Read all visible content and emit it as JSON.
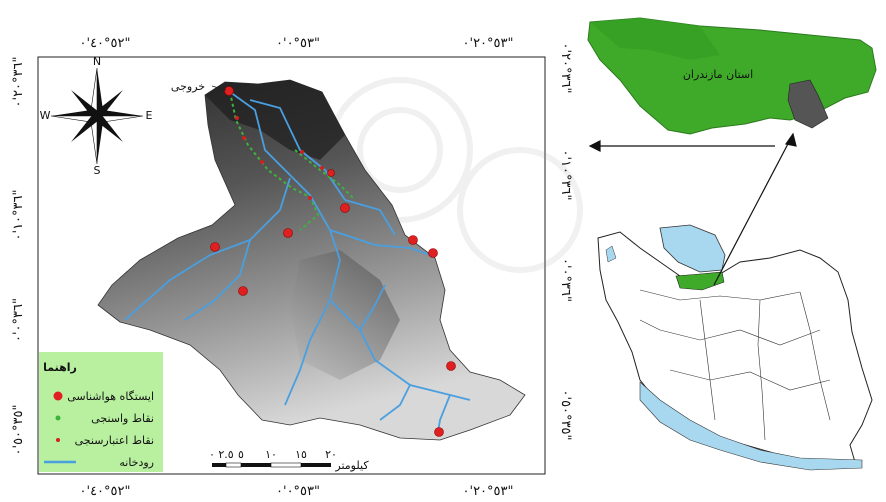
{
  "top_coords": [
    "٥٢°٤٠'٠\"",
    "٥٣°٠'٠\"",
    "٥٣°٢٠'٠\""
  ],
  "bottom_coords": [
    "٥٢°٤٠'٠\"",
    "٥٣°٠'٠\"",
    "٥٣°٢٠'٠\""
  ],
  "left_coords": [
    "٣٦°٢٠'٠\"",
    "٣٦°١٠'٠\"",
    "٣٦°٠'٠\"",
    "٣٥°٥٠'٠\""
  ],
  "right_coords": [
    "٣٦°٢٠'٠\"",
    "٣٦°١٠'٠\"",
    "٣٦°٠'٠\"",
    "٣٥°٥٠'٠\""
  ],
  "outlet_label": "خروجی",
  "compass": {
    "n": "N",
    "s": "S",
    "e": "E",
    "w": "W"
  },
  "legend": {
    "title": "راهنما",
    "items": [
      {
        "label": "ایستگاه هواشناسی",
        "symbol": "red-dot",
        "color": "#e02020"
      },
      {
        "label": "نقاط واسنجی",
        "symbol": "green-dot",
        "color": "#3cb43c"
      },
      {
        "label": "نقاط اعتبارسنجی",
        "symbol": "small-red-dot",
        "color": "#d02020"
      },
      {
        "label": "رودخانه",
        "symbol": "blue-line",
        "color": "#4a9fe0"
      }
    ]
  },
  "scale_bar": {
    "ticks": [
      "٠",
      "٢.٥",
      "٥",
      "١٠",
      "١٥",
      "٢٠"
    ],
    "unit": "کیلومتر"
  },
  "inset_province_label": "استان مازندران",
  "colors": {
    "province_green": "#3faa2a",
    "caspian_blue": "#a8d8ef",
    "legend_bg": "#b8f0a0",
    "river_blue": "#4a9fe0"
  }
}
